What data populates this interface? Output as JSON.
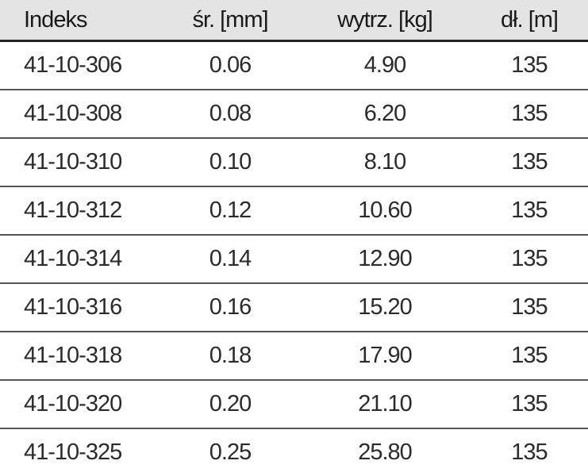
{
  "table": {
    "header": [
      "Indeks",
      "śr. [mm]",
      "wytrz. [kg]",
      "dł. [m]"
    ],
    "rows": [
      [
        "41-10-306",
        "0.06",
        "4.90",
        "135"
      ],
      [
        "41-10-308",
        "0.08",
        "6.20",
        "135"
      ],
      [
        "41-10-310",
        "0.10",
        "8.10",
        "135"
      ],
      [
        "41-10-312",
        "0.12",
        "10.60",
        "135"
      ],
      [
        "41-10-314",
        "0.14",
        "12.90",
        "135"
      ],
      [
        "41-10-316",
        "0.16",
        "15.20",
        "135"
      ],
      [
        "41-10-318",
        "0.18",
        "17.90",
        "135"
      ],
      [
        "41-10-320",
        "0.20",
        "21.10",
        "135"
      ],
      [
        "41-10-325",
        "0.25",
        "25.80",
        "135"
      ]
    ]
  }
}
